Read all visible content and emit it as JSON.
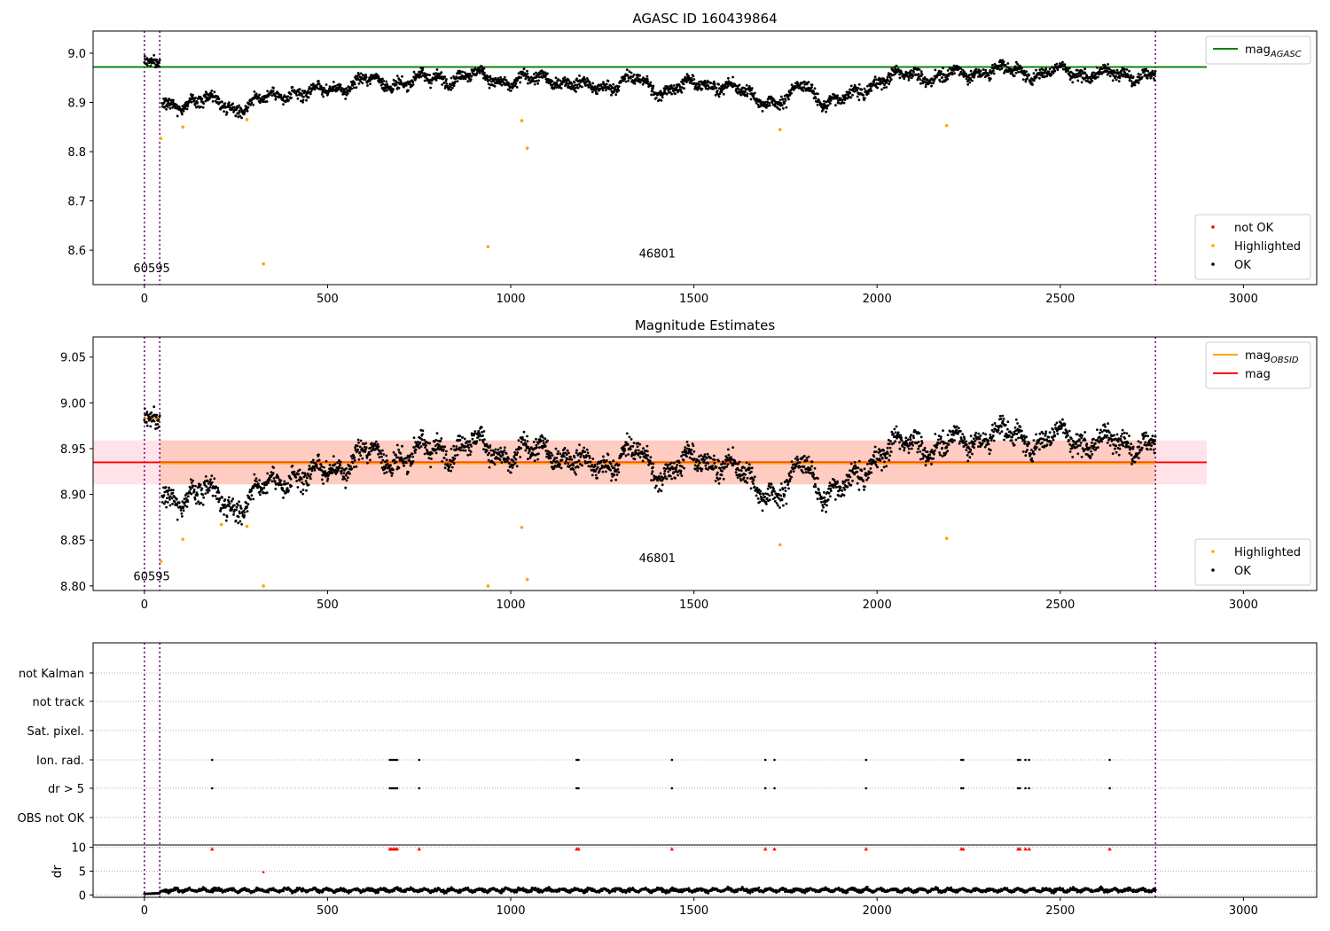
{
  "chart_data": [
    {
      "type": "scatter",
      "title": "AGASC ID 160439864",
      "xlim": [
        -140,
        3200
      ],
      "ylim": [
        8.53,
        9.045
      ],
      "xticks": [
        0,
        500,
        1000,
        1500,
        2000,
        2500,
        3000
      ],
      "yticks": [
        8.6,
        8.7,
        8.8,
        8.9,
        9.0
      ],
      "ytick_labels": [
        "8.6",
        "8.7",
        "8.8",
        "8.9",
        "9.0"
      ],
      "vlines": [
        0,
        42,
        2760
      ],
      "obsid_labels": [
        {
          "text": "60595",
          "x": 20,
          "y": 8.555
        },
        {
          "text": "46801",
          "x": 1400,
          "y": 8.585
        }
      ],
      "legends": [
        {
          "position": "upper right",
          "entries": [
            {
              "label_main": "mag",
              "label_sub": "AGASC",
              "kind": "line",
              "color": "#008000"
            }
          ]
        },
        {
          "position": "lower right",
          "entries": [
            {
              "label_main": "not OK",
              "label_sub": "",
              "kind": "marker",
              "color": "#ff0000"
            },
            {
              "label_main": "Highlighted",
              "label_sub": "",
              "kind": "marker",
              "color": "#ffa500"
            },
            {
              "label_main": "OK",
              "label_sub": "",
              "kind": "marker",
              "color": "#000000"
            }
          ]
        }
      ],
      "hlines": [
        {
          "y": 8.972,
          "x0": -140,
          "x1": 2900,
          "color": "#008000"
        }
      ],
      "highlighted": [
        [
          45,
          8.827
        ],
        [
          105,
          8.85
        ],
        [
          280,
          8.865
        ],
        [
          325,
          8.572
        ],
        [
          938,
          8.607
        ],
        [
          1030,
          8.863
        ],
        [
          1045,
          8.807
        ],
        [
          1735,
          8.845
        ],
        [
          2190,
          8.853
        ]
      ],
      "ok_trend": [
        [
          0,
          8.985
        ],
        [
          42,
          8.98
        ],
        [
          45,
          8.893
        ],
        [
          100,
          8.9
        ],
        [
          150,
          8.905
        ],
        [
          200,
          8.9
        ],
        [
          250,
          8.89
        ],
        [
          300,
          8.9
        ],
        [
          350,
          8.912
        ],
        [
          400,
          8.92
        ],
        [
          450,
          8.918
        ],
        [
          500,
          8.925
        ],
        [
          550,
          8.935
        ],
        [
          600,
          8.945
        ],
        [
          650,
          8.94
        ],
        [
          700,
          8.94
        ],
        [
          750,
          8.945
        ],
        [
          800,
          8.95
        ],
        [
          850,
          8.952
        ],
        [
          900,
          8.955
        ],
        [
          950,
          8.95
        ],
        [
          1000,
          8.94
        ],
        [
          1050,
          8.945
        ],
        [
          1100,
          8.952
        ],
        [
          1150,
          8.94
        ],
        [
          1200,
          8.93
        ],
        [
          1250,
          8.935
        ],
        [
          1300,
          8.94
        ],
        [
          1350,
          8.945
        ],
        [
          1400,
          8.925
        ],
        [
          1450,
          8.93
        ],
        [
          1500,
          8.935
        ],
        [
          1550,
          8.94
        ],
        [
          1600,
          8.93
        ],
        [
          1650,
          8.915
        ],
        [
          1700,
          8.905
        ],
        [
          1750,
          8.9
        ],
        [
          1800,
          8.94
        ],
        [
          1850,
          8.905
        ],
        [
          1900,
          8.9
        ],
        [
          1950,
          8.92
        ],
        [
          2000,
          8.945
        ],
        [
          2050,
          8.95
        ],
        [
          2100,
          8.96
        ],
        [
          2150,
          8.95
        ],
        [
          2200,
          8.955
        ],
        [
          2250,
          8.96
        ],
        [
          2300,
          8.965
        ],
        [
          2350,
          8.965
        ],
        [
          2400,
          8.962
        ],
        [
          2450,
          8.958
        ],
        [
          2500,
          8.965
        ],
        [
          2550,
          8.96
        ],
        [
          2600,
          8.958
        ],
        [
          2650,
          8.955
        ],
        [
          2700,
          8.958
        ],
        [
          2760,
          8.958
        ]
      ],
      "ok_spread": 0.022
    },
    {
      "type": "scatter",
      "title": "Magnitude Estimates",
      "xlim": [
        -140,
        3200
      ],
      "ylim": [
        8.795,
        9.072
      ],
      "xticks": [
        0,
        500,
        1000,
        1500,
        2000,
        2500,
        3000
      ],
      "yticks": [
        8.8,
        8.85,
        8.9,
        8.95,
        9.0,
        9.05
      ],
      "ytick_labels": [
        "8.80",
        "8.85",
        "8.90",
        "8.95",
        "9.00",
        "9.05"
      ],
      "vlines": [
        0,
        42,
        2760
      ],
      "obsid_labels": [
        {
          "text": "60595",
          "x": 20,
          "y": 8.806
        },
        {
          "text": "46801",
          "x": 1400,
          "y": 8.826
        }
      ],
      "legends": [
        {
          "position": "upper right",
          "entries": [
            {
              "label_main": "mag",
              "label_sub": "OBSID",
              "kind": "line",
              "color": "#ffa500"
            },
            {
              "label_main": "mag",
              "label_sub": "",
              "kind": "line",
              "color": "#ff0000"
            }
          ]
        },
        {
          "position": "lower right",
          "entries": [
            {
              "label_main": "Highlighted",
              "label_sub": "",
              "kind": "marker",
              "color": "#ffa500"
            },
            {
              "label_main": "OK",
              "label_sub": "",
              "kind": "marker",
              "color": "#000000"
            }
          ]
        }
      ],
      "hlines": [
        {
          "y": 8.935,
          "x0": -140,
          "x1": 2900,
          "color": "#ff0000"
        }
      ],
      "obsid_lines": [
        {
          "x0": 0,
          "x1": 42,
          "y": 8.983
        },
        {
          "x0": 42,
          "x1": 2760,
          "y": 8.934
        }
      ],
      "bands": [
        {
          "x0": -140,
          "x1": 2900,
          "y0": 8.911,
          "y1": 8.959,
          "color": "#ffc0cb",
          "opacity": 0.45
        },
        {
          "x0": 42,
          "x1": 2760,
          "y0": 8.911,
          "y1": 8.959,
          "color": "#ffa07a",
          "opacity": 0.35
        }
      ],
      "highlighted": [
        [
          45,
          8.827
        ],
        [
          105,
          8.851
        ],
        [
          210,
          8.867
        ],
        [
          280,
          8.865
        ],
        [
          325,
          8.8
        ],
        [
          938,
          8.8
        ],
        [
          1030,
          8.864
        ],
        [
          1045,
          8.807
        ],
        [
          1735,
          8.845
        ],
        [
          2190,
          8.852
        ]
      ],
      "ok_trend": [
        [
          0,
          8.985
        ],
        [
          42,
          8.98
        ],
        [
          45,
          8.893
        ],
        [
          100,
          8.9
        ],
        [
          150,
          8.905
        ],
        [
          200,
          8.895
        ],
        [
          250,
          8.888
        ],
        [
          300,
          8.9
        ],
        [
          350,
          8.912
        ],
        [
          400,
          8.92
        ],
        [
          450,
          8.918
        ],
        [
          500,
          8.925
        ],
        [
          550,
          8.935
        ],
        [
          600,
          8.945
        ],
        [
          650,
          8.94
        ],
        [
          700,
          8.94
        ],
        [
          750,
          8.945
        ],
        [
          800,
          8.95
        ],
        [
          850,
          8.952
        ],
        [
          900,
          8.955
        ],
        [
          950,
          8.95
        ],
        [
          1000,
          8.94
        ],
        [
          1050,
          8.945
        ],
        [
          1100,
          8.952
        ],
        [
          1150,
          8.94
        ],
        [
          1200,
          8.93
        ],
        [
          1250,
          8.935
        ],
        [
          1300,
          8.94
        ],
        [
          1350,
          8.945
        ],
        [
          1400,
          8.925
        ],
        [
          1450,
          8.93
        ],
        [
          1500,
          8.935
        ],
        [
          1550,
          8.94
        ],
        [
          1600,
          8.93
        ],
        [
          1650,
          8.915
        ],
        [
          1700,
          8.905
        ],
        [
          1750,
          8.9
        ],
        [
          1800,
          8.94
        ],
        [
          1850,
          8.905
        ],
        [
          1900,
          8.9
        ],
        [
          1950,
          8.92
        ],
        [
          2000,
          8.945
        ],
        [
          2050,
          8.95
        ],
        [
          2100,
          8.96
        ],
        [
          2150,
          8.95
        ],
        [
          2200,
          8.955
        ],
        [
          2250,
          8.96
        ],
        [
          2300,
          8.965
        ],
        [
          2350,
          8.965
        ],
        [
          2400,
          8.962
        ],
        [
          2450,
          8.958
        ],
        [
          2500,
          8.965
        ],
        [
          2550,
          8.96
        ],
        [
          2600,
          8.958
        ],
        [
          2650,
          8.955
        ],
        [
          2700,
          8.958
        ],
        [
          2760,
          8.958
        ]
      ],
      "ok_spread": 0.022
    },
    {
      "type": "scatter",
      "title": "",
      "xlim": [
        -140,
        3200
      ],
      "xticks": [
        0,
        500,
        1000,
        1500,
        2000,
        2500,
        3000
      ],
      "vlines": [
        0,
        42,
        2760
      ],
      "flag_rows": [
        "not Kalman",
        "not track",
        "Sat. pixel.",
        "Ion. rad.",
        "dr > 5",
        "OBS not OK"
      ],
      "flag_points": {
        "Ion. rad.": [
          185,
          670,
          675,
          680,
          685,
          690,
          750,
          1180,
          1185,
          1440,
          1695,
          1720,
          1970,
          2230,
          2235,
          2385,
          2390,
          2405,
          2415,
          2635
        ],
        "dr > 5": [
          185,
          670,
          675,
          680,
          685,
          690,
          750,
          1180,
          1185,
          1440,
          1695,
          1720,
          1970,
          2230,
          2235,
          2385,
          2390,
          2405,
          2415,
          2635
        ]
      },
      "dr_ylabel": "dr",
      "dr_ylim": [
        -0.5,
        10.5
      ],
      "dr_yticks": [
        0,
        5,
        10
      ],
      "dr_clipped_x": [
        185,
        670,
        675,
        680,
        685,
        690,
        750,
        1180,
        1185,
        1440,
        1695,
        1720,
        1970,
        2230,
        2235,
        2385,
        2390,
        2405,
        2415,
        2635
      ],
      "dr_extra_red": [
        [
          325,
          4.8
        ]
      ],
      "dr_trend": [
        [
          0,
          0.2
        ],
        [
          42,
          0.4
        ],
        [
          60,
          1.0
        ],
        [
          500,
          1.0
        ],
        [
          1000,
          1.0
        ],
        [
          1500,
          1.0
        ],
        [
          2000,
          1.0
        ],
        [
          2500,
          1.0
        ],
        [
          2760,
          1.0
        ]
      ],
      "dr_spread": 0.6
    }
  ]
}
